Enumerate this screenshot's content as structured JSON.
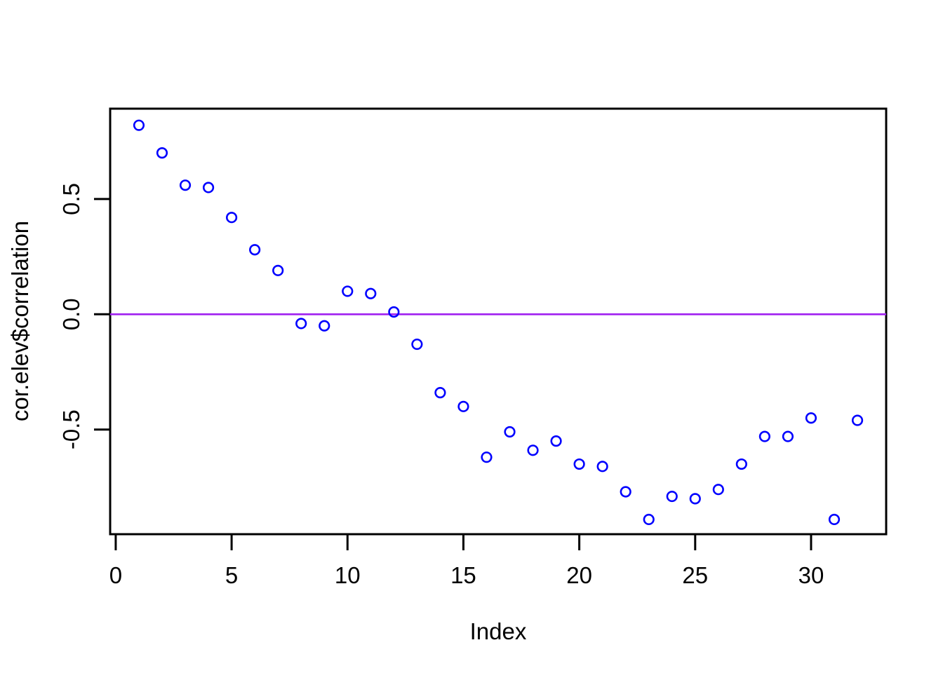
{
  "chart_data": {
    "type": "scatter",
    "title": "",
    "xlabel": "Index",
    "ylabel": "cor.elev$correlation",
    "x": [
      1,
      2,
      3,
      4,
      5,
      6,
      7,
      8,
      9,
      10,
      11,
      12,
      13,
      14,
      15,
      16,
      17,
      18,
      19,
      20,
      21,
      22,
      23,
      24,
      25,
      26,
      27,
      28,
      29,
      30,
      31,
      32
    ],
    "y": [
      0.82,
      0.7,
      0.56,
      0.55,
      0.42,
      0.28,
      0.19,
      -0.04,
      -0.05,
      0.1,
      0.09,
      0.01,
      -0.13,
      -0.34,
      -0.4,
      -0.62,
      -0.51,
      -0.59,
      -0.55,
      -0.65,
      -0.66,
      -0.77,
      -0.89,
      -0.79,
      -0.8,
      -0.76,
      -0.65,
      -0.53,
      -0.53,
      -0.45,
      -0.89,
      -0.46
    ],
    "xlim": [
      -0.24,
      33.24
    ],
    "ylim": [
      -0.954,
      0.892
    ],
    "xticks": [
      0,
      5,
      10,
      15,
      20,
      25,
      30
    ],
    "xtick_labels": [
      "0",
      "5",
      "10",
      "15",
      "20",
      "25",
      "30"
    ],
    "yticks": [
      -0.5,
      0.0,
      0.5
    ],
    "ytick_labels": [
      "-0.5",
      "0.0",
      "0.5"
    ],
    "grid": false,
    "legend": null,
    "reference_line": {
      "y": 0,
      "color": "#A020F0"
    },
    "point_style": {
      "shape": "open-circle",
      "color": "#0000FF"
    },
    "background_color": "#FFFFFF",
    "axis_color": "#000000"
  }
}
